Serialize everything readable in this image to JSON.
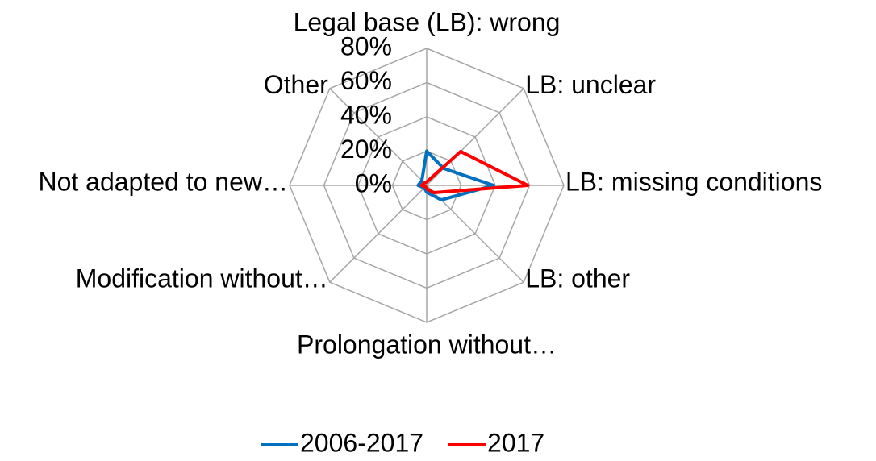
{
  "chart_data": {
    "type": "radar",
    "categories": [
      "Legal base (LB): wrong",
      "LB: unclear",
      "LB: missing conditions",
      "LB: other",
      "Prolongation without…",
      "Modification without…",
      "Not adapted to new…",
      "Other"
    ],
    "series": [
      {
        "name": "2006-2017",
        "color": "#0070c0",
        "values": [
          20,
          14,
          39,
          12,
          4,
          2,
          5,
          4
        ]
      },
      {
        "name": "2017",
        "color": "#ff0000",
        "values": [
          2,
          28,
          59,
          6,
          2,
          1,
          3,
          2
        ]
      }
    ],
    "ylim": [
      0,
      80
    ],
    "yticks": [
      {
        "value": 0,
        "label": "0%"
      },
      {
        "value": 20,
        "label": "20%"
      },
      {
        "value": 40,
        "label": "40%"
      },
      {
        "value": 60,
        "label": "60%"
      },
      {
        "value": 80,
        "label": "80%"
      }
    ],
    "grid": true,
    "legend": "bottom"
  }
}
